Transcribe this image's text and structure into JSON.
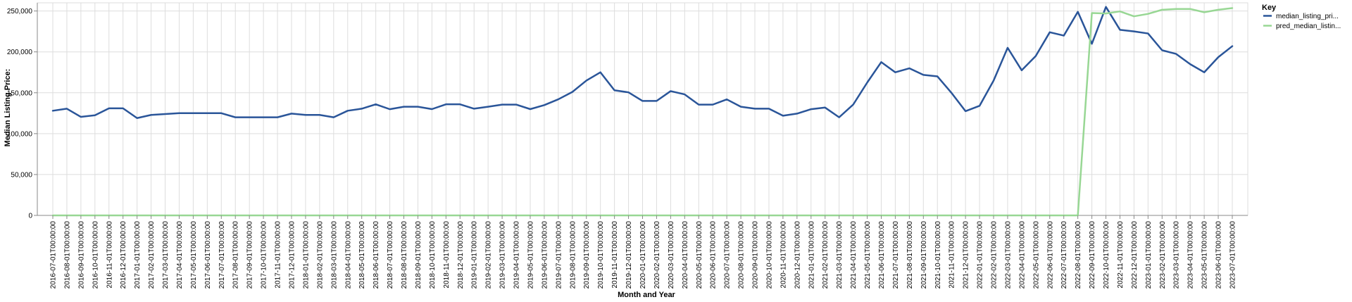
{
  "chart_data": {
    "type": "line",
    "xlabel": "Month and Year",
    "ylabel": "Median Listing Price:",
    "ylim": [
      0,
      260000
    ],
    "y_ticks": [
      0,
      50000,
      100000,
      150000,
      200000,
      250000
    ],
    "y_tick_labels": [
      "0",
      "50,000",
      "100,000",
      "150,000",
      "200,000",
      "250,000"
    ],
    "grid": true,
    "legend": {
      "title": "Key",
      "placement": "top-right"
    },
    "x": [
      "2016-07-01T00:00:00",
      "2016-08-01T00:00:00",
      "2016-09-01T00:00:00",
      "2016-10-01T00:00:00",
      "2016-11-01T00:00:00",
      "2016-12-01T00:00:00",
      "2017-01-01T00:00:00",
      "2017-02-01T00:00:00",
      "2017-03-01T00:00:00",
      "2017-04-01T00:00:00",
      "2017-05-01T00:00:00",
      "2017-06-01T00:00:00",
      "2017-07-01T00:00:00",
      "2017-08-01T00:00:00",
      "2017-09-01T00:00:00",
      "2017-10-01T00:00:00",
      "2017-11-01T00:00:00",
      "2017-12-01T00:00:00",
      "2018-01-01T00:00:00",
      "2018-02-01T00:00:00",
      "2018-03-01T00:00:00",
      "2018-04-01T00:00:00",
      "2018-05-01T00:00:00",
      "2018-06-01T00:00:00",
      "2018-07-01T00:00:00",
      "2018-08-01T00:00:00",
      "2018-09-01T00:00:00",
      "2018-10-01T00:00:00",
      "2018-11-01T00:00:00",
      "2018-12-01T00:00:00",
      "2019-01-01T00:00:00",
      "2019-02-01T00:00:00",
      "2019-03-01T00:00:00",
      "2019-04-01T00:00:00",
      "2019-05-01T00:00:00",
      "2019-06-01T00:00:00",
      "2019-07-01T00:00:00",
      "2019-08-01T00:00:00",
      "2019-09-01T00:00:00",
      "2019-10-01T00:00:00",
      "2019-11-01T00:00:00",
      "2019-12-01T00:00:00",
      "2020-01-01T00:00:00",
      "2020-02-01T00:00:00",
      "2020-03-01T00:00:00",
      "2020-04-01T00:00:00",
      "2020-05-01T00:00:00",
      "2020-06-01T00:00:00",
      "2020-07-01T00:00:00",
      "2020-08-01T00:00:00",
      "2020-09-01T00:00:00",
      "2020-10-01T00:00:00",
      "2020-11-01T00:00:00",
      "2020-12-01T00:00:00",
      "2021-01-01T00:00:00",
      "2021-02-01T00:00:00",
      "2021-03-01T00:00:00",
      "2021-04-01T00:00:00",
      "2021-05-01T00:00:00",
      "2021-06-01T00:00:00",
      "2021-07-01T00:00:00",
      "2021-08-01T00:00:00",
      "2021-09-01T00:00:00",
      "2021-10-01T00:00:00",
      "2021-11-01T00:00:00",
      "2021-12-01T00:00:00",
      "2022-01-01T00:00:00",
      "2022-02-01T00:00:00",
      "2022-03-01T00:00:00",
      "2022-04-01T00:00:00",
      "2022-05-01T00:00:00",
      "2022-06-01T00:00:00",
      "2022-07-01T00:00:00",
      "2022-08-01T00:00:00",
      "2022-09-01T00:00:00",
      "2022-10-01T00:00:00",
      "2022-11-01T00:00:00",
      "2022-12-01T00:00:00",
      "2023-01-01T00:00:00",
      "2023-02-01T00:00:00",
      "2023-03-01T00:00:00",
      "2023-04-01T00:00:00",
      "2023-05-01T00:00:00",
      "2023-06-01T00:00:00",
      "2023-07-01T00:00:00"
    ],
    "series": [
      {
        "name": "median_listing_pri...",
        "color": "#2a5599",
        "values": [
          128000,
          130500,
          120500,
          122500,
          131000,
          131000,
          119000,
          122900,
          124000,
          125000,
          125000,
          125000,
          125000,
          120000,
          120000,
          120000,
          120000,
          124500,
          122900,
          122900,
          120000,
          128000,
          130500,
          135900,
          129900,
          132900,
          132900,
          130000,
          135900,
          135900,
          130500,
          132900,
          135500,
          135500,
          130000,
          134900,
          142000,
          151000,
          164900,
          175000,
          153000,
          150500,
          140000,
          140000,
          152000,
          148000,
          135500,
          135500,
          141900,
          132900,
          130500,
          130500,
          121900,
          124500,
          129900,
          131900,
          120000,
          135500,
          162500,
          187500,
          175000,
          179900,
          171900,
          170000,
          149900,
          127500,
          134000,
          164900,
          205000,
          177500,
          194900,
          224000,
          219900,
          249000,
          209900,
          255000,
          227000,
          225000,
          222500,
          202000,
          197500,
          185000,
          175000,
          193500,
          207000
        ]
      },
      {
        "name": "pred_median_listin...",
        "color": "#98d794",
        "values": [
          0,
          0,
          0,
          0,
          0,
          0,
          0,
          0,
          0,
          0,
          0,
          0,
          0,
          0,
          0,
          0,
          0,
          0,
          0,
          0,
          0,
          0,
          0,
          0,
          0,
          0,
          0,
          0,
          0,
          0,
          0,
          0,
          0,
          0,
          0,
          0,
          0,
          0,
          0,
          0,
          0,
          0,
          0,
          0,
          0,
          0,
          0,
          0,
          0,
          0,
          0,
          0,
          0,
          0,
          0,
          0,
          0,
          0,
          0,
          0,
          0,
          0,
          0,
          0,
          0,
          0,
          0,
          0,
          0,
          0,
          0,
          0,
          0,
          0,
          247500,
          247000,
          249500,
          243500,
          246500,
          251500,
          252500,
          252500,
          248500,
          251500,
          253500
        ]
      }
    ]
  }
}
